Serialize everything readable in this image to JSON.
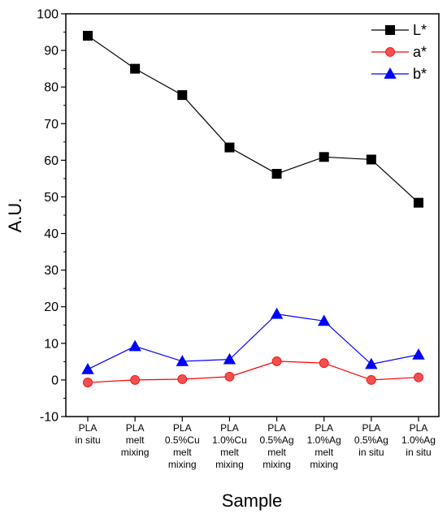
{
  "chart_data": {
    "type": "line",
    "xlabel": "Sample",
    "ylabel": "A.U.",
    "ylim": [
      -10,
      100
    ],
    "yticks": [
      -10,
      0,
      10,
      20,
      30,
      40,
      50,
      60,
      70,
      80,
      90,
      100
    ],
    "grid": false,
    "legend_position": "top-right",
    "categories": [
      [
        "PLA",
        "in situ"
      ],
      [
        "PLA",
        "melt",
        "mixing"
      ],
      [
        "PLA",
        "0.5%Cu",
        "melt",
        "mixing"
      ],
      [
        "PLA",
        "1.0%Cu",
        "melt",
        "mixing"
      ],
      [
        "PLA",
        "0.5%Ag",
        "melt",
        "mixing"
      ],
      [
        "PLA",
        "1.0%Ag",
        "melt",
        "mixing"
      ],
      [
        "PLA",
        "0.5%Ag",
        "in situ"
      ],
      [
        "PLA",
        "1.0%Ag",
        "in situ"
      ]
    ],
    "series": [
      {
        "name": "L*",
        "color": "#000000",
        "marker": "square",
        "values": [
          94,
          85,
          77.8,
          63.5,
          56.3,
          60.9,
          60.2,
          48.4
        ]
      },
      {
        "name": "a*",
        "color": "#ff0000",
        "fill": "#f05050",
        "marker": "circle",
        "values": [
          -0.7,
          0,
          0.2,
          0.9,
          5.1,
          4.6,
          0,
          0.7
        ]
      },
      {
        "name": "b*",
        "color": "#0000ff",
        "fill": "#0000ff",
        "marker": "triangle",
        "values": [
          2.9,
          9.2,
          5.1,
          5.6,
          18,
          16.1,
          4.3,
          6.9
        ]
      }
    ]
  }
}
